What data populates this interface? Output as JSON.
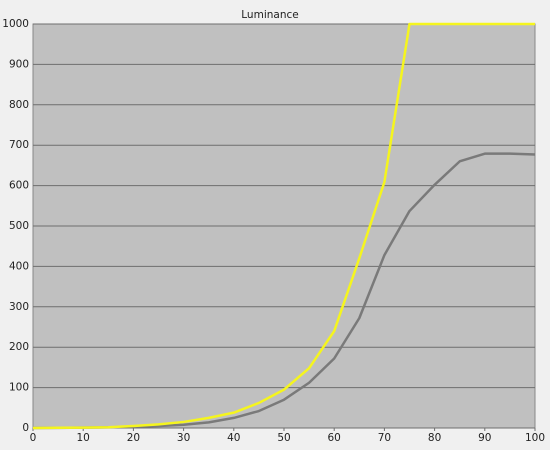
{
  "chart_data": {
    "type": "line",
    "title": "Luminance",
    "x": [
      0,
      5,
      10,
      15,
      20,
      25,
      30,
      35,
      40,
      45,
      50,
      55,
      60,
      65,
      70,
      75,
      80,
      85,
      90,
      95,
      100
    ],
    "series": [
      {
        "color": "#f5f51e",
        "values": [
          0,
          0.5,
          1,
          2,
          5,
          9,
          15,
          25,
          38,
          62,
          95,
          148,
          240,
          420,
          609,
          1000,
          1000,
          1000,
          1000,
          1000,
          1000
        ]
      },
      {
        "color": "#7a7a7a",
        "values": [
          0,
          0.3,
          1,
          1.5,
          3,
          5,
          8,
          14,
          25,
          42,
          70,
          112,
          172,
          272,
          428,
          537,
          602,
          660,
          679,
          679,
          677
        ]
      }
    ],
    "xlim": [
      0,
      100
    ],
    "xticks": [
      0,
      10,
      20,
      30,
      40,
      50,
      60,
      70,
      80,
      90,
      100
    ],
    "ylim": [
      0,
      1000
    ],
    "yticks": [
      0,
      100,
      200,
      300,
      400,
      500,
      600,
      700,
      800,
      900,
      1000
    ],
    "grid": true
  }
}
